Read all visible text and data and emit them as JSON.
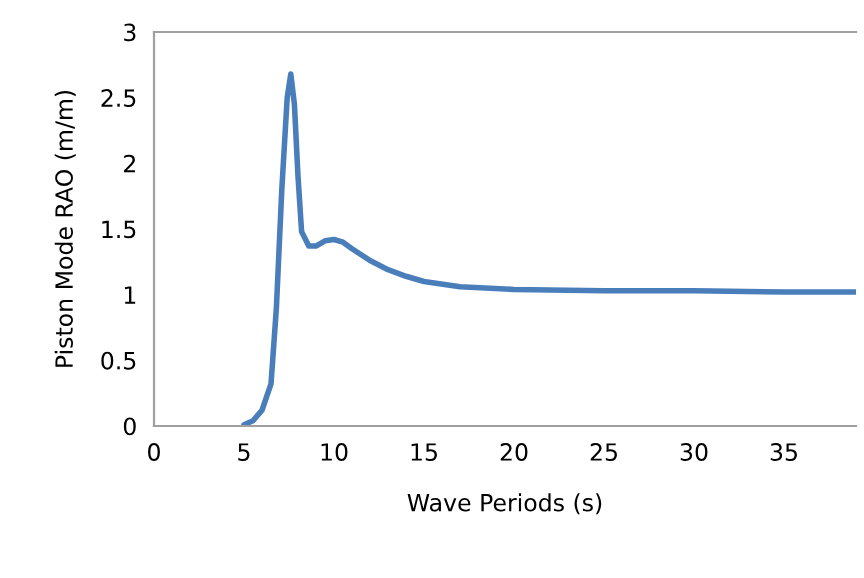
{
  "chart_data": {
    "type": "line",
    "xlabel": "Wave Periods (s)",
    "ylabel": "Piston Mode RAO (m/m)",
    "xlim": [
      0,
      39
    ],
    "xticks": [
      0,
      5,
      10,
      15,
      20,
      25,
      30,
      35
    ],
    "ylim": [
      0,
      3
    ],
    "yticks": [
      0,
      0.5,
      1,
      1.5,
      2,
      2.5,
      3
    ],
    "grid": false,
    "legend": false,
    "marker": "none",
    "line_style": "solid",
    "series": [
      {
        "color": "#4a7ebb",
        "x": [
          5,
          5.5,
          6,
          6.5,
          6.8,
          7.1,
          7.4,
          7.6,
          7.8,
          8.0,
          8.2,
          8.6,
          9,
          9.5,
          10,
          10.5,
          11,
          12,
          13,
          14,
          15,
          17,
          20,
          25,
          30,
          35,
          39
        ],
        "values": [
          0.01,
          0.04,
          0.12,
          0.32,
          0.9,
          1.8,
          2.5,
          2.68,
          2.45,
          1.9,
          1.48,
          1.37,
          1.37,
          1.41,
          1.42,
          1.4,
          1.35,
          1.26,
          1.19,
          1.14,
          1.1,
          1.06,
          1.04,
          1.03,
          1.03,
          1.02,
          1.02
        ]
      }
    ]
  }
}
